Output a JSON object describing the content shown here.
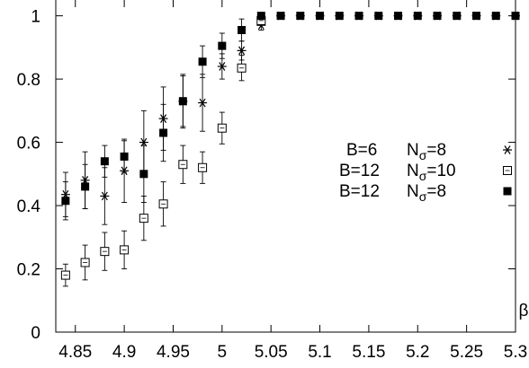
{
  "chart_data": {
    "type": "scatter",
    "title": "",
    "xlabel": "β",
    "ylabel": "",
    "xlim": [
      4.83,
      5.3
    ],
    "ylim": [
      0,
      1.05
    ],
    "xticks": [
      4.85,
      4.9,
      4.95,
      5,
      5.05,
      5.1,
      5.15,
      5.2,
      5.25,
      5.3
    ],
    "xtick_labels": [
      "4.85",
      "4.9",
      "4.95",
      "5",
      "5.05",
      "5.1",
      "5.15",
      "5.2",
      "5.25",
      "5.3"
    ],
    "yticks": [
      0,
      0.2,
      0.4,
      0.6,
      0.8,
      1
    ],
    "ytick_labels": [
      "0",
      "0.2",
      "0.4",
      "0.6",
      "0.8",
      "1"
    ],
    "grid": false,
    "legend_position": "right",
    "series": [
      {
        "name": "B=6",
        "label_extra": "8",
        "marker": "star",
        "points": [
          {
            "x": 4.84,
            "y": 0.435,
            "err": 0.07
          },
          {
            "x": 4.86,
            "y": 0.48,
            "err": 0.09
          },
          {
            "x": 4.88,
            "y": 0.43,
            "err": 0.09
          },
          {
            "x": 4.9,
            "y": 0.51,
            "err": 0.1
          },
          {
            "x": 4.92,
            "y": 0.6,
            "err": 0.1
          },
          {
            "x": 4.94,
            "y": 0.675,
            "err": 0.1
          },
          {
            "x": 4.96,
            "y": 0.73,
            "err": 0.085
          },
          {
            "x": 4.98,
            "y": 0.725,
            "err": 0.09
          },
          {
            "x": 5.0,
            "y": 0.84,
            "err": 0.04
          },
          {
            "x": 5.02,
            "y": 0.89,
            "err": 0.03
          },
          {
            "x": 5.04,
            "y": 0.97,
            "err": 0.015
          },
          {
            "x": 5.06,
            "y": 1.0,
            "err": 0
          },
          {
            "x": 5.08,
            "y": 1.0,
            "err": 0
          },
          {
            "x": 5.1,
            "y": 1.0,
            "err": 0
          },
          {
            "x": 5.12,
            "y": 1.0,
            "err": 0
          },
          {
            "x": 5.14,
            "y": 1.0,
            "err": 0
          },
          {
            "x": 5.16,
            "y": 1.0,
            "err": 0
          },
          {
            "x": 5.18,
            "y": 1.0,
            "err": 0
          },
          {
            "x": 5.2,
            "y": 1.0,
            "err": 0
          },
          {
            "x": 5.22,
            "y": 1.0,
            "err": 0
          },
          {
            "x": 5.24,
            "y": 1.0,
            "err": 0
          },
          {
            "x": 5.26,
            "y": 1.0,
            "err": 0
          },
          {
            "x": 5.28,
            "y": 1.0,
            "err": 0
          },
          {
            "x": 5.3,
            "y": 1.0,
            "err": 0
          }
        ]
      },
      {
        "name": "B=12",
        "label_extra": "10",
        "marker": "open-square",
        "points": [
          {
            "x": 4.84,
            "y": 0.18,
            "err": 0.035
          },
          {
            "x": 4.86,
            "y": 0.22,
            "err": 0.055
          },
          {
            "x": 4.88,
            "y": 0.255,
            "err": 0.06
          },
          {
            "x": 4.9,
            "y": 0.26,
            "err": 0.06
          },
          {
            "x": 4.92,
            "y": 0.36,
            "err": 0.07
          },
          {
            "x": 4.94,
            "y": 0.405,
            "err": 0.07
          },
          {
            "x": 4.96,
            "y": 0.53,
            "err": 0.06
          },
          {
            "x": 4.98,
            "y": 0.52,
            "err": 0.05
          },
          {
            "x": 5.0,
            "y": 0.645,
            "err": 0.05
          },
          {
            "x": 5.02,
            "y": 0.835,
            "err": 0.04
          },
          {
            "x": 5.04,
            "y": 0.985,
            "err": 0.01
          }
        ]
      },
      {
        "name": "B=12",
        "label_extra": "8",
        "marker": "filled-square",
        "points": [
          {
            "x": 4.84,
            "y": 0.415,
            "err": 0.06
          },
          {
            "x": 4.86,
            "y": 0.46,
            "err": 0.07
          },
          {
            "x": 4.88,
            "y": 0.54,
            "err": 0.05
          },
          {
            "x": 4.9,
            "y": 0.555,
            "err": 0.05
          },
          {
            "x": 4.92,
            "y": 0.5,
            "err": 0.09
          },
          {
            "x": 4.94,
            "y": 0.63,
            "err": 0.09
          },
          {
            "x": 4.96,
            "y": 0.73,
            "err": 0.08
          },
          {
            "x": 4.98,
            "y": 0.855,
            "err": 0.05
          },
          {
            "x": 5.0,
            "y": 0.905,
            "err": 0.04
          },
          {
            "x": 5.02,
            "y": 0.955,
            "err": 0.035
          },
          {
            "x": 5.04,
            "y": 1.0,
            "err": 0
          },
          {
            "x": 5.06,
            "y": 1.0,
            "err": 0
          },
          {
            "x": 5.08,
            "y": 1.0,
            "err": 0
          },
          {
            "x": 5.1,
            "y": 1.0,
            "err": 0
          },
          {
            "x": 5.12,
            "y": 1.0,
            "err": 0
          },
          {
            "x": 5.14,
            "y": 1.0,
            "err": 0
          },
          {
            "x": 5.16,
            "y": 1.0,
            "err": 0
          },
          {
            "x": 5.18,
            "y": 1.0,
            "err": 0
          },
          {
            "x": 5.2,
            "y": 1.0,
            "err": 0
          },
          {
            "x": 5.22,
            "y": 1.0,
            "err": 0
          },
          {
            "x": 5.24,
            "y": 1.0,
            "err": 0
          },
          {
            "x": 5.26,
            "y": 1.0,
            "err": 0
          },
          {
            "x": 5.28,
            "y": 1.0,
            "err": 0
          },
          {
            "x": 5.3,
            "y": 1.0,
            "err": 0
          }
        ]
      }
    ]
  }
}
